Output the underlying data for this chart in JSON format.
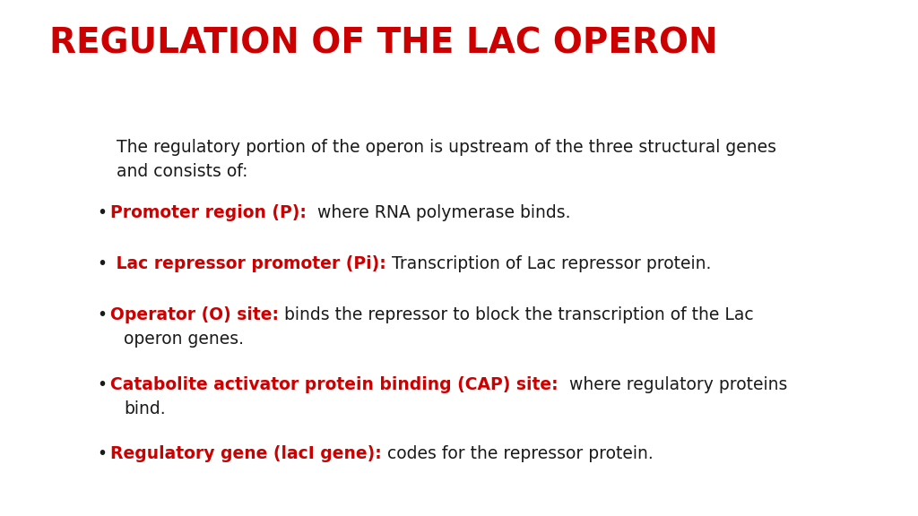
{
  "title": "REGULATION OF THE LAC OPERON",
  "title_color": "#cc0000",
  "title_fontsize": 28,
  "background_color": "#ffffff",
  "intro_line1": "The regulatory portion of the operon is upstream of the three structural genes",
  "intro_line2": "and consists of:",
  "intro_fontsize": 13.5,
  "bullet_dot": "•",
  "label_color": "#cc0000",
  "label_fontsize": 13.5,
  "text_color": "#1a1a1a",
  "text_fontsize": 13.5,
  "bullets": [
    {
      "label": "Promoter region (P):",
      "text": "  where RNA polymerase binds.",
      "continuation": null
    },
    {
      "label": " Lac repressor promoter (Pi):",
      "text": " Transcription of Lac repressor protein.",
      "continuation": null
    },
    {
      "label": "Operator (O) site:",
      "text": " binds the repressor to block the transcription of the Lac",
      "continuation": "operon genes."
    },
    {
      "label": "Catabolite activator protein binding (CAP) site:",
      "text": "  where regulatory proteins",
      "continuation": "bind."
    },
    {
      "label": "Regulatory gene (lacI gene):",
      "text": " codes for the repressor protein.",
      "continuation": null
    }
  ]
}
